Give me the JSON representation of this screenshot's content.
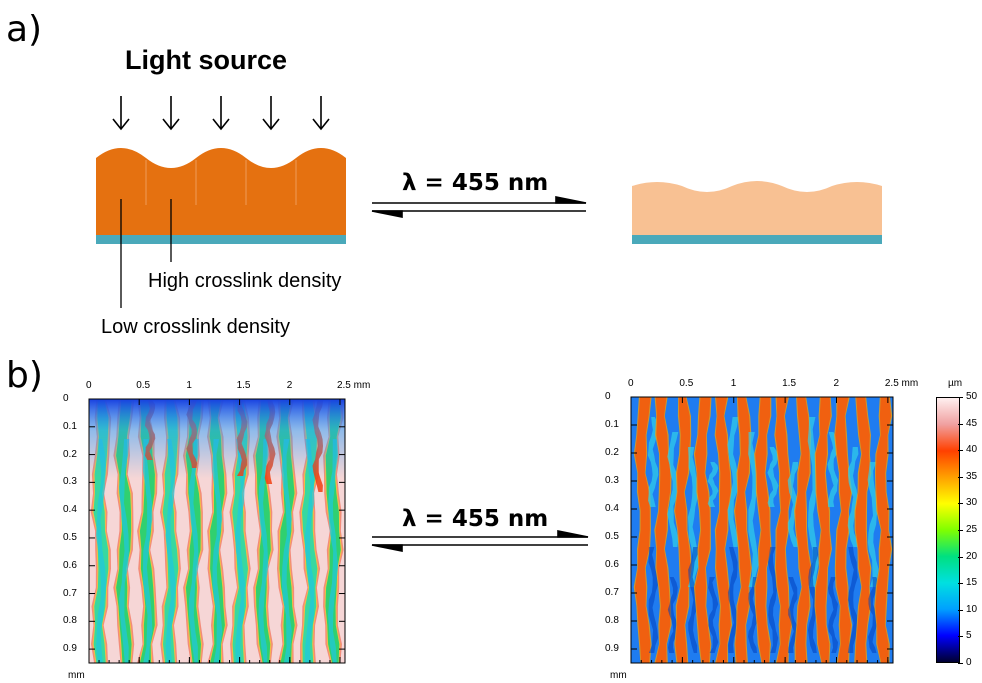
{
  "panel_a": {
    "label": "a)",
    "title": "Light source",
    "wavelength_label": "λ = 455 nm",
    "high_density_label": "High crosslink density",
    "low_density_label": "Low crosslink density",
    "colors": {
      "dark_film": "#e57110",
      "light_film": "#f8c193",
      "substrate": "#4aa9ba"
    }
  },
  "panel_b": {
    "label": "b)",
    "wavelength_label": "λ = 455 nm",
    "x_ticks": [
      "0",
      "0.5",
      "1",
      "1.5",
      "2",
      "2.5 mm"
    ],
    "y_ticks": [
      "0",
      "0.1",
      "0.2",
      "0.3",
      "0.4",
      "0.5",
      "0.6",
      "0.7",
      "0.8",
      "0.9"
    ],
    "y_unit": "mm",
    "colorbar": {
      "unit": "µm",
      "ticks": [
        "50",
        "45",
        "40",
        "35",
        "30",
        "25",
        "20",
        "15",
        "10",
        "5",
        "0"
      ],
      "stops": [
        "#000030",
        "#0000ff",
        "#00a0ff",
        "#00e0e0",
        "#00e080",
        "#80ff00",
        "#ffff00",
        "#ffa000",
        "#ff4000",
        "#f0a0a0",
        "#fff0f0"
      ]
    }
  }
}
